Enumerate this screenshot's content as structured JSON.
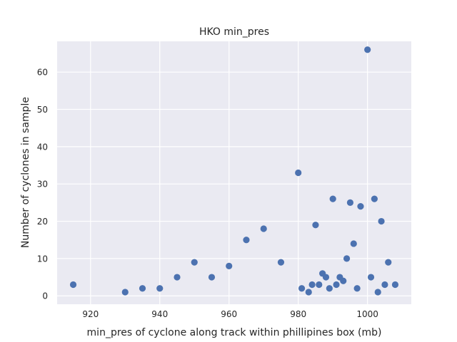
{
  "chart_data": {
    "type": "scatter",
    "title": "HKO min_pres",
    "xlabel": "min_pres of cyclone along track within phillipines box (mb)",
    "ylabel": "Number of cyclones in sample",
    "xlim": [
      910.35,
      1012.65
    ],
    "ylim": [
      -2.25,
      68.25
    ],
    "xticks": [
      920,
      940,
      960,
      980,
      1000
    ],
    "yticks": [
      0,
      10,
      20,
      30,
      40,
      50,
      60
    ],
    "grid": true,
    "background": "#eaeaf2",
    "marker_color": "#4c72b0",
    "points": [
      {
        "x": 915,
        "y": 3
      },
      {
        "x": 930,
        "y": 1
      },
      {
        "x": 935,
        "y": 2
      },
      {
        "x": 940,
        "y": 2
      },
      {
        "x": 945,
        "y": 5
      },
      {
        "x": 950,
        "y": 9
      },
      {
        "x": 955,
        "y": 5
      },
      {
        "x": 960,
        "y": 8
      },
      {
        "x": 965,
        "y": 15
      },
      {
        "x": 970,
        "y": 18
      },
      {
        "x": 975,
        "y": 9
      },
      {
        "x": 980,
        "y": 33
      },
      {
        "x": 981,
        "y": 2
      },
      {
        "x": 983,
        "y": 1
      },
      {
        "x": 984,
        "y": 3
      },
      {
        "x": 985,
        "y": 19
      },
      {
        "x": 986,
        "y": 3
      },
      {
        "x": 987,
        "y": 6
      },
      {
        "x": 988,
        "y": 5
      },
      {
        "x": 989,
        "y": 2
      },
      {
        "x": 990,
        "y": 26
      },
      {
        "x": 991,
        "y": 3
      },
      {
        "x": 992,
        "y": 5
      },
      {
        "x": 993,
        "y": 4
      },
      {
        "x": 994,
        "y": 10
      },
      {
        "x": 995,
        "y": 25
      },
      {
        "x": 996,
        "y": 14
      },
      {
        "x": 997,
        "y": 2
      },
      {
        "x": 998,
        "y": 24
      },
      {
        "x": 1000,
        "y": 66
      },
      {
        "x": 1001,
        "y": 5
      },
      {
        "x": 1002,
        "y": 26
      },
      {
        "x": 1003,
        "y": 1
      },
      {
        "x": 1004,
        "y": 20
      },
      {
        "x": 1005,
        "y": 3
      },
      {
        "x": 1006,
        "y": 9
      },
      {
        "x": 1008,
        "y": 3
      }
    ]
  }
}
